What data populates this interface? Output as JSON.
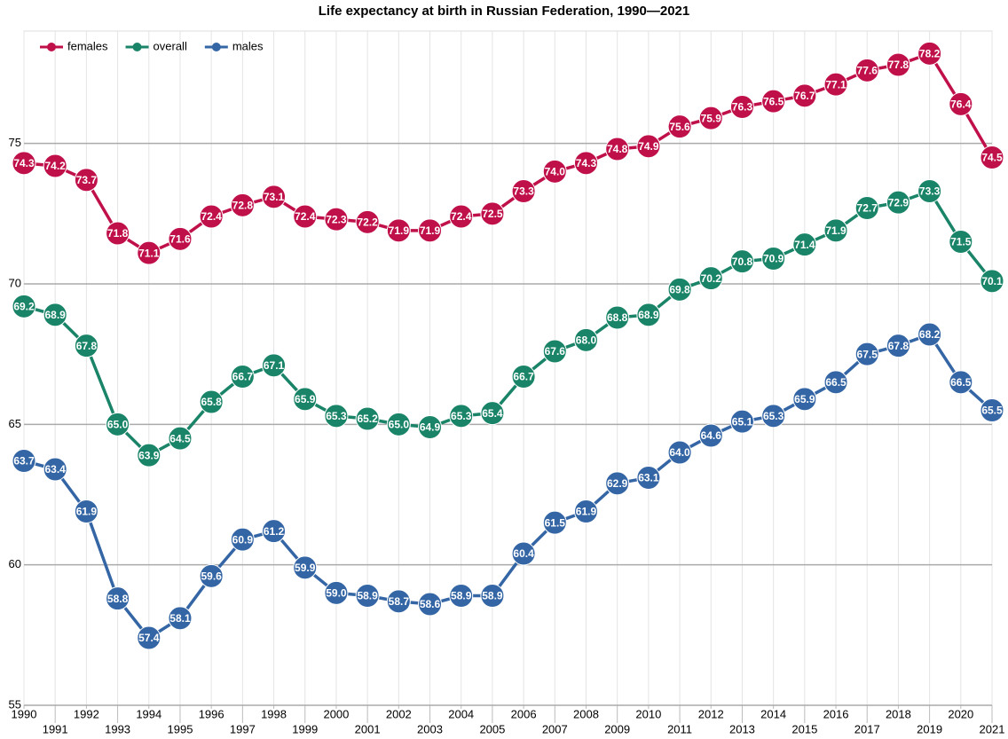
{
  "chart_data": {
    "type": "line",
    "title": "Life expectancy at birth in Russian Federation, 1990—2021",
    "x": [
      1990,
      1991,
      1992,
      1993,
      1994,
      1995,
      1996,
      1997,
      1998,
      1999,
      2000,
      2001,
      2002,
      2003,
      2004,
      2005,
      2006,
      2007,
      2008,
      2009,
      2010,
      2011,
      2012,
      2013,
      2014,
      2015,
      2016,
      2017,
      2018,
      2019,
      2020,
      2021
    ],
    "xlim": [
      1990,
      2021
    ],
    "xticks": [
      1990,
      1991,
      1992,
      1993,
      1994,
      1995,
      1996,
      1997,
      1998,
      1999,
      2000,
      2001,
      2002,
      2003,
      2004,
      2005,
      2006,
      2007,
      2008,
      2009,
      2010,
      2011,
      2012,
      2013,
      2014,
      2015,
      2016,
      2017,
      2018,
      2019,
      2020,
      2021
    ],
    "ylim": [
      55,
      79
    ],
    "yticks": [
      55,
      60,
      65,
      70,
      75
    ],
    "grid": true,
    "legend": "top-left",
    "series": [
      {
        "name": "females",
        "color": "#c0104a",
        "values": [
          74.3,
          74.2,
          73.7,
          71.8,
          71.1,
          71.6,
          72.4,
          72.8,
          73.1,
          72.4,
          72.3,
          72.2,
          71.9,
          71.9,
          72.4,
          72.5,
          73.3,
          74.0,
          74.3,
          74.8,
          74.9,
          75.6,
          75.9,
          76.3,
          76.5,
          76.7,
          77.1,
          77.6,
          77.8,
          78.2,
          76.4,
          74.5
        ],
        "value_labels": [
          "74.3",
          "74.2",
          "73.7",
          "71.8",
          "71.1",
          "71.6",
          "72.4",
          "72.8",
          "73.1",
          "72.4",
          "72.3",
          "72.2",
          "71.9",
          "71.9",
          "72.4",
          "72.5",
          "73.3",
          "74.0",
          "74.3",
          "74.8",
          "74.9",
          "75.6",
          "75.9",
          "76.3",
          "76.5",
          "76.7",
          "77.1",
          "77.6",
          "77.8",
          "78.2",
          "76.4",
          "74.5"
        ]
      },
      {
        "name": "overall",
        "color": "#1a8468",
        "values": [
          69.2,
          68.9,
          67.8,
          65.0,
          63.9,
          64.5,
          65.8,
          66.7,
          67.1,
          65.9,
          65.3,
          65.2,
          65.0,
          64.9,
          65.3,
          65.4,
          66.7,
          67.6,
          68.0,
          68.8,
          68.9,
          69.8,
          70.2,
          70.8,
          70.9,
          71.4,
          71.9,
          72.7,
          72.9,
          73.3,
          71.5,
          70.1
        ],
        "value_labels": [
          "69.2",
          "68.9",
          "67.8",
          "65.0",
          "63.9",
          "64.5",
          "65.8",
          "66.7",
          "67.1",
          "65.9",
          "65.3",
          "65.2",
          "65.0",
          "64.9",
          "65.3",
          "65.4",
          "66.7",
          "67.6",
          "68.0",
          "68.8",
          "68.9",
          "69.8",
          "70.2",
          "70.8",
          "70.9",
          "71.4",
          "71.9",
          "72.7",
          "72.9",
          "73.3",
          "71.5",
          "70.1"
        ]
      },
      {
        "name": "males",
        "color": "#3465a4",
        "values": [
          63.7,
          63.4,
          61.9,
          58.8,
          57.4,
          58.1,
          59.6,
          60.9,
          61.2,
          59.9,
          59.0,
          58.9,
          58.7,
          58.6,
          58.9,
          58.9,
          60.4,
          61.5,
          61.9,
          62.9,
          63.1,
          64.0,
          64.6,
          65.1,
          65.3,
          65.9,
          66.5,
          67.5,
          67.8,
          68.2,
          66.5,
          65.5
        ],
        "value_labels": [
          "63.7",
          "63.4",
          "61.9",
          "58.8",
          "57.4",
          "58.1",
          "59.6",
          "60.9",
          "61.2",
          "59.9",
          "59.0",
          "58.9",
          "58.7",
          "58.6",
          "58.9",
          "58.9",
          "60.4",
          "61.5",
          "61.9",
          "62.9",
          "63.1",
          "64.0",
          "64.6",
          "65.1",
          "65.3",
          "65.9",
          "66.5",
          "67.5",
          "67.8",
          "68.2",
          "66.5",
          "65.5"
        ]
      }
    ]
  }
}
